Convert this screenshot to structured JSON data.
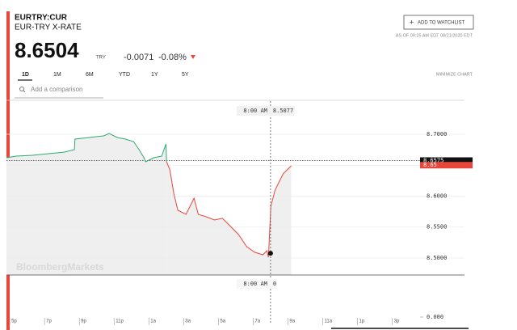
{
  "header": {
    "ticker": "EURTRY:CUR",
    "name": "EUR-TRY X-RATE",
    "price": 8.6504,
    "currency": "TRY",
    "change": -0.0071,
    "change_percent": "-0.08%",
    "watchlist_button": "ADD TO WATCHLIST",
    "as_of": "AS OF 09:25 AM EDT 08/21/2020 EDT"
  },
  "tabs": [
    "1D",
    "1M",
    "6M",
    "YTD",
    "1Y",
    "5Y"
  ],
  "minimize": "MINIMIZE CHART",
  "comparison_placeholder": "Add a comparison",
  "watermark": "BloombergMarkets",
  "chart_data": {
    "type": "line",
    "grid": true,
    "xlim": [
      16.81,
      40.6
    ],
    "ylim": [
      8.4725,
      8.7536
    ],
    "xticks": [
      {
        "value": 17,
        "label": "5p"
      },
      {
        "value": 19,
        "label": "7p"
      },
      {
        "value": 21,
        "label": "9p"
      },
      {
        "value": 23,
        "label": "11p"
      },
      {
        "value": 25,
        "label": "1a"
      },
      {
        "value": 27,
        "label": "3a"
      },
      {
        "value": 29,
        "label": "5a"
      },
      {
        "value": 31,
        "label": "7a"
      },
      {
        "value": 33,
        "label": "9a"
      },
      {
        "value": 35,
        "label": "11a"
      },
      {
        "value": 37,
        "label": "1p"
      },
      {
        "value": 39,
        "label": "3p"
      }
    ],
    "yticks": [
      {
        "value": 8.7,
        "label": "8.7000"
      },
      {
        "value": 8.65,
        "label": "8.6500"
      },
      {
        "value": 8.6,
        "label": "8.6000"
      },
      {
        "value": 8.55,
        "label": "8.5500"
      },
      {
        "value": 8.5,
        "label": "8.5000"
      }
    ],
    "series": [
      {
        "color": "#2eaa6e",
        "x": [
          16.81,
          17.37,
          18.3,
          19.23,
          20.16,
          20.72,
          20.75,
          21.56,
          22.4,
          22.72,
          23.19,
          23.65,
          24.12,
          24.44,
          24.72,
          24.81,
          25.28,
          25.74,
          25.98,
          26.02
        ],
        "values": [
          8.6621,
          8.6647,
          8.666,
          8.6686,
          8.6712,
          8.6752,
          8.6922,
          8.6948,
          8.6974,
          8.7013,
          8.6948,
          8.6922,
          8.6882,
          8.6752,
          8.6621,
          8.6556,
          8.6621,
          8.6647,
          8.6843,
          8.6556
        ]
      },
      {
        "color": "#e8463a",
        "x": [
          26.02,
          26.21,
          26.44,
          26.67,
          27.14,
          27.6,
          27.84,
          28.3,
          28.77,
          29.23,
          29.7,
          30.16,
          30.63,
          31.09,
          31.56,
          31.79,
          31.88,
          32.02,
          32.26,
          32.72,
          33.19
        ],
        "values": [
          8.6556,
          8.6425,
          8.6033,
          8.5771,
          8.5706,
          8.5967,
          8.5706,
          8.5667,
          8.5614,
          8.5641,
          8.551,
          8.5379,
          8.5183,
          8.5092,
          8.5052,
          8.5118,
          8.5013,
          8.5837,
          8.6098,
          8.6359,
          8.649
        ]
      }
    ],
    "previous_close": 8.6575,
    "last": 8.65,
    "crosshair": {
      "x": 32,
      "time_label": "8:00 AM",
      "value": 8.5077
    },
    "volume": {
      "yticks": [
        {
          "value": 0,
          "label": "0.000"
        }
      ],
      "crosshair_value": 0
    }
  }
}
